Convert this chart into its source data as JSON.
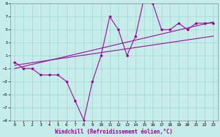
{
  "xlabel": "Windchill (Refroidissement éolien,°C)",
  "xlim": [
    -0.5,
    23.5
  ],
  "ylim": [
    -9,
    9
  ],
  "xticks": [
    0,
    1,
    2,
    3,
    4,
    5,
    6,
    7,
    8,
    9,
    10,
    11,
    12,
    13,
    14,
    15,
    16,
    17,
    18,
    19,
    20,
    21,
    22,
    23
  ],
  "yticks": [
    -9,
    -7,
    -5,
    -3,
    -1,
    1,
    3,
    5,
    7,
    9
  ],
  "background_color": "#c6ecea",
  "grid_color": "#a0d4d0",
  "line_color": "#990099",
  "data_x": [
    0,
    1,
    2,
    3,
    4,
    5,
    6,
    7,
    8,
    9,
    10,
    11,
    12,
    13,
    14,
    15,
    16,
    17,
    18,
    19,
    20,
    21,
    22,
    23
  ],
  "data_y": [
    0,
    -1,
    -1,
    -2,
    -2,
    -2,
    -3,
    -6,
    -9,
    -3,
    1,
    7,
    5,
    1,
    4,
    10,
    9,
    5,
    5,
    6,
    5,
    6,
    6,
    6
  ],
  "trend1_x": [
    0,
    23
  ],
  "trend1_y": [
    -1.0,
    6.2
  ],
  "trend2_x": [
    0,
    23
  ],
  "trend2_y": [
    -0.5,
    4.0
  ],
  "tick_fontsize": 4.5,
  "xlabel_fontsize": 5.5,
  "linewidth": 0.8,
  "markersize": 1.8
}
